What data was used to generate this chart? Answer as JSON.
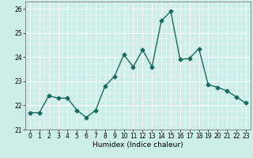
{
  "x": [
    0,
    1,
    2,
    3,
    4,
    5,
    6,
    7,
    8,
    9,
    10,
    11,
    12,
    13,
    14,
    15,
    16,
    17,
    18,
    19,
    20,
    21,
    22,
    23
  ],
  "y": [
    21.7,
    21.7,
    22.4,
    22.3,
    22.3,
    21.8,
    21.5,
    21.8,
    22.8,
    23.2,
    24.1,
    23.6,
    24.3,
    23.6,
    25.5,
    25.9,
    23.9,
    23.95,
    24.35,
    22.85,
    22.75,
    22.6,
    22.35,
    22.1
  ],
  "line_color": "#1a6b5e",
  "marker": "D",
  "markersize": 2.5,
  "linewidth": 1.0,
  "xlabel": "Humidex (Indice chaleur)",
  "ylim": [
    21,
    26.3
  ],
  "xlim": [
    -0.5,
    23.5
  ],
  "yticks": [
    21,
    22,
    23,
    24,
    25,
    26
  ],
  "xticks": [
    0,
    1,
    2,
    3,
    4,
    5,
    6,
    7,
    8,
    9,
    10,
    11,
    12,
    13,
    14,
    15,
    16,
    17,
    18,
    19,
    20,
    21,
    22,
    23
  ],
  "bg_color": "#cceee8",
  "grid_color": "#ffffff",
  "tick_fontsize": 5.5,
  "xlabel_fontsize": 6.5
}
